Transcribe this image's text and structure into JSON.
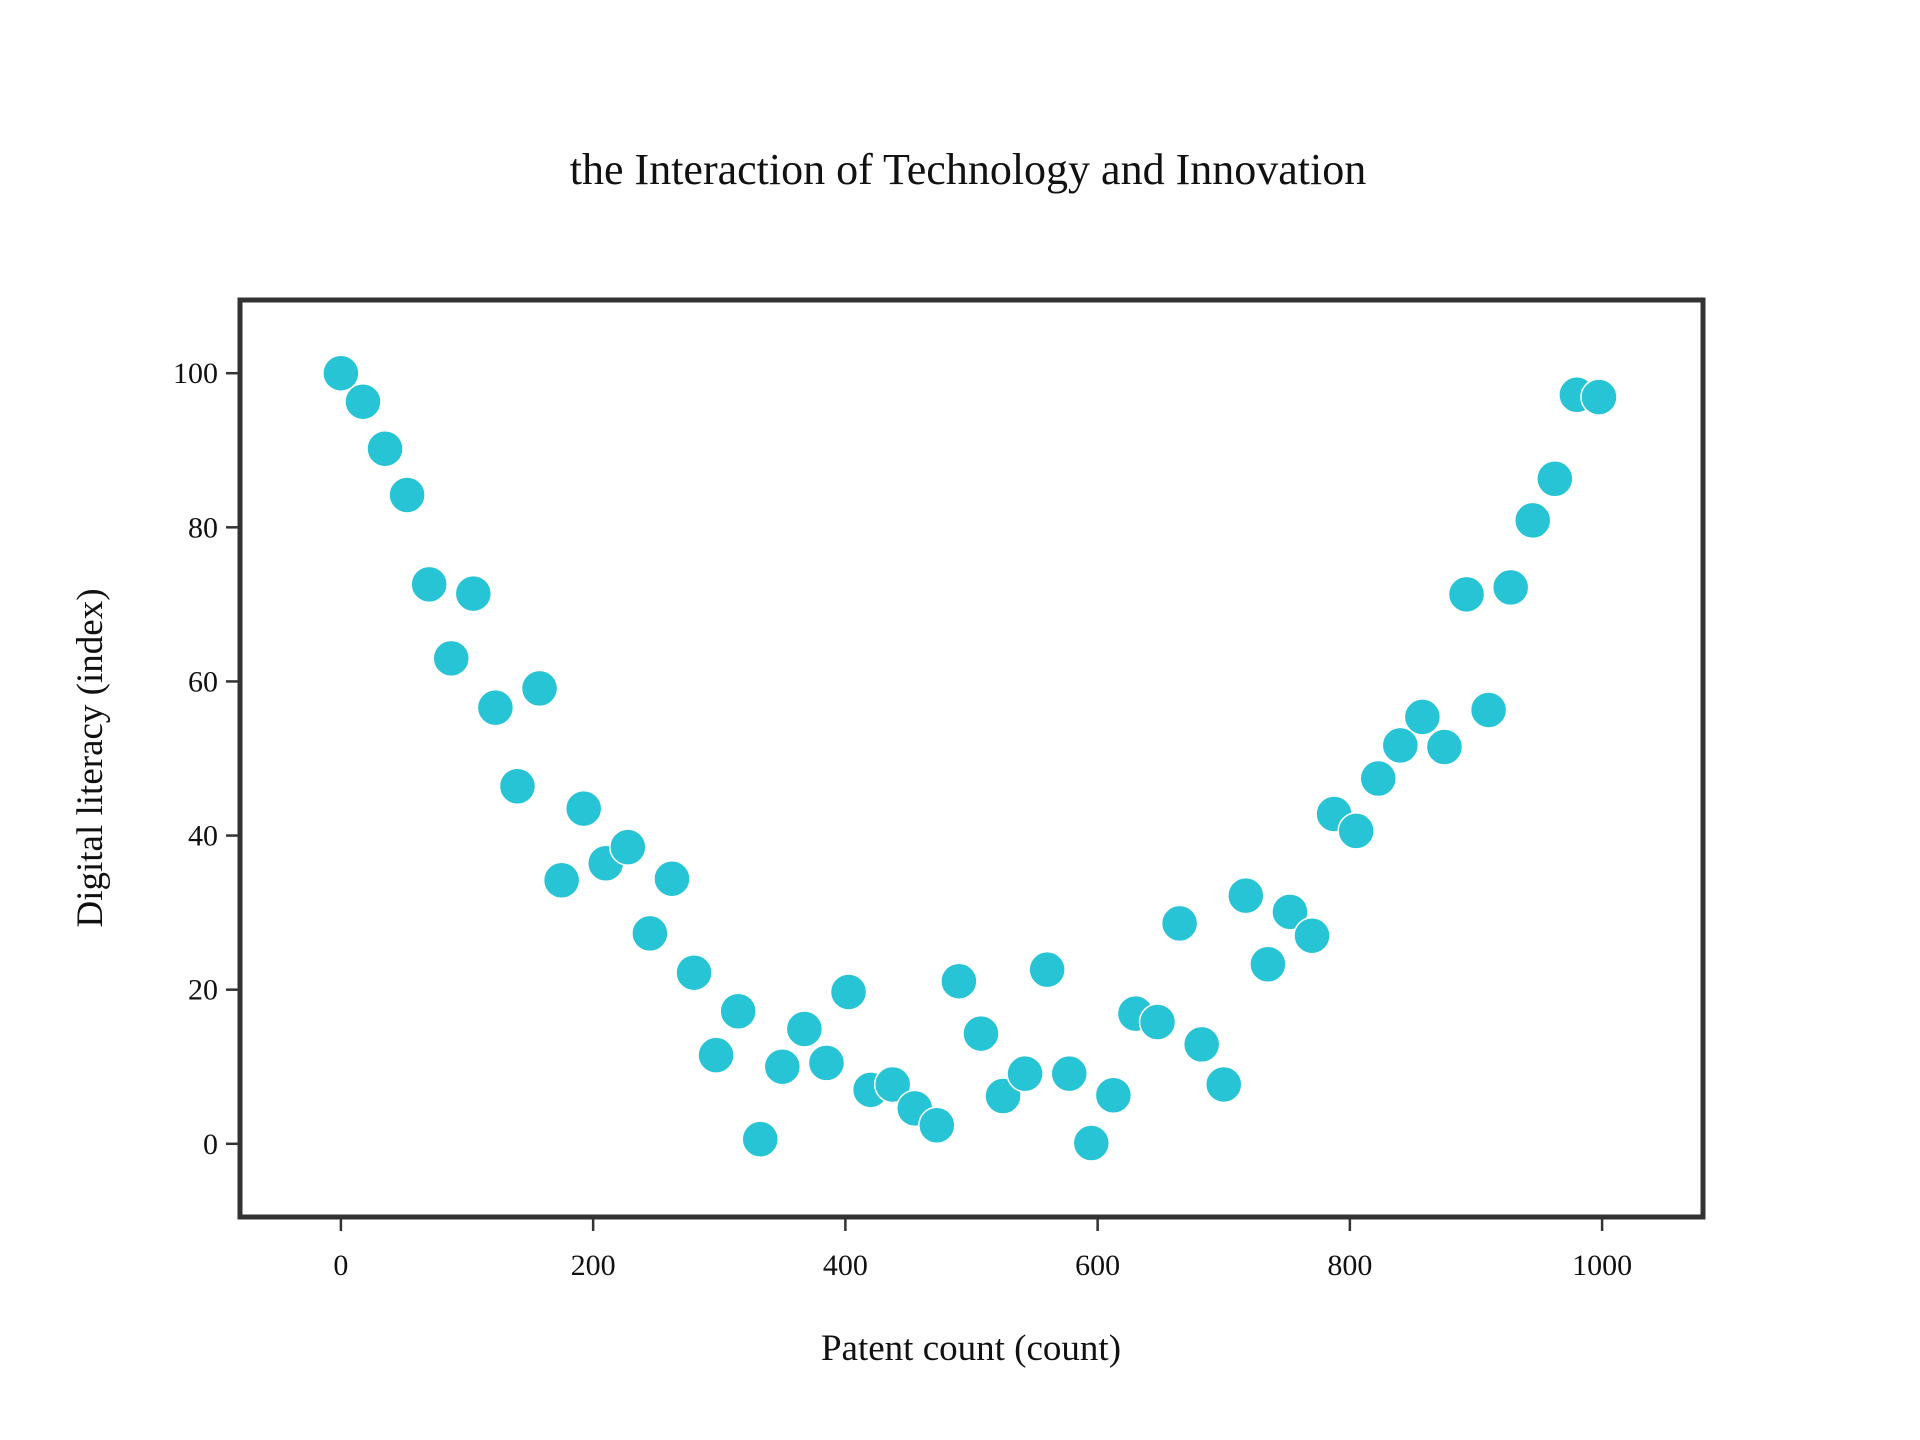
{
  "chart_data": {
    "type": "scatter",
    "title": "the Interaction of Technology and Innovation",
    "xlabel": "Patent count (count)",
    "ylabel": "Digital literacy (index)",
    "xlim": [
      -80,
      1080
    ],
    "ylim": [
      -9.5,
      109.5
    ],
    "xticks": [
      0,
      200,
      400,
      600,
      800,
      1000
    ],
    "yticks": [
      0,
      20,
      40,
      60,
      80,
      100
    ],
    "grid": false,
    "legend": "none",
    "marker_color": "#26C4D4",
    "series": [
      {
        "x": [
          0,
          17.5,
          35,
          52.5,
          70,
          87.5,
          105,
          122.5,
          140,
          157.5,
          175,
          192.5,
          210,
          227.5,
          245,
          262.5,
          280,
          297.5,
          315,
          332.5,
          350,
          367.5,
          385,
          402.5,
          420,
          437.5,
          455,
          472.5,
          490,
          507.5,
          525,
          542.5,
          560,
          577.5,
          595,
          612.5,
          630,
          647.5,
          665,
          682.5,
          700,
          717.5,
          735,
          752.5,
          770,
          787.5,
          805,
          822.5,
          840,
          857.5,
          875,
          892.5,
          910,
          927.5,
          945,
          962.5,
          980,
          997.5
        ],
        "y": [
          100,
          96.3,
          90.2,
          84.2,
          72.6,
          63.0,
          71.4,
          56.6,
          46.4,
          59.1,
          34.2,
          43.5,
          36.4,
          38.5,
          27.3,
          34.4,
          22.2,
          11.5,
          17.2,
          0.6,
          10.0,
          14.9,
          10.5,
          19.7,
          7.0,
          7.7,
          4.6,
          2.4,
          21.1,
          14.3,
          6.2,
          9.1,
          22.6,
          9.1,
          0.1,
          6.3,
          16.9,
          15.8,
          28.6,
          12.9,
          7.7,
          32.2,
          23.3,
          30.1,
          27.0,
          42.8,
          40.6,
          47.4,
          51.7,
          55.4,
          51.5,
          71.3,
          56.3,
          72.2,
          80.9,
          86.3,
          97.2,
          96.9
        ]
      }
    ]
  }
}
